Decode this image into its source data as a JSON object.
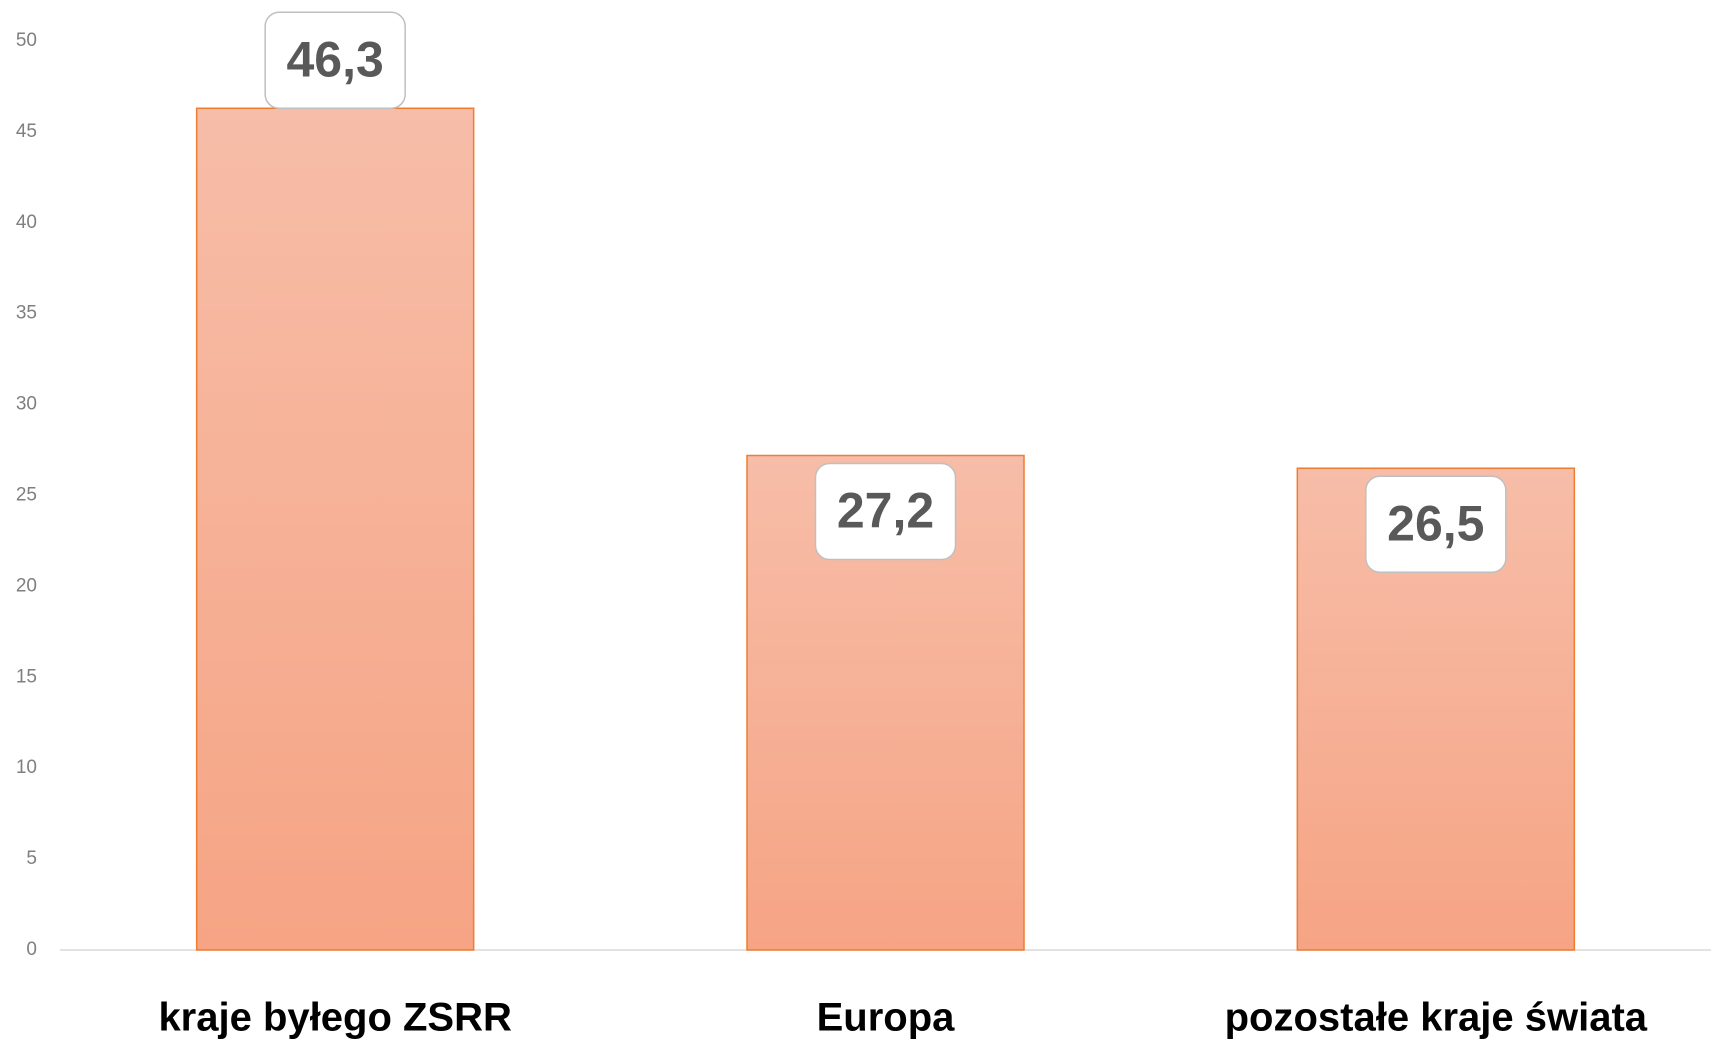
{
  "chart_data": {
    "type": "bar",
    "categories": [
      "kraje byłego ZSRR",
      "Europa",
      "pozostałe kraje świata"
    ],
    "values": [
      46.3,
      27.2,
      26.5
    ],
    "value_labels": [
      "46,3",
      "27,2",
      "26,5"
    ],
    "color": "#f6a988",
    "ylim": [
      0,
      50
    ],
    "yticks": [
      0,
      5,
      10,
      15,
      20,
      25,
      30,
      35,
      40,
      45,
      50
    ],
    "grid": false
  }
}
